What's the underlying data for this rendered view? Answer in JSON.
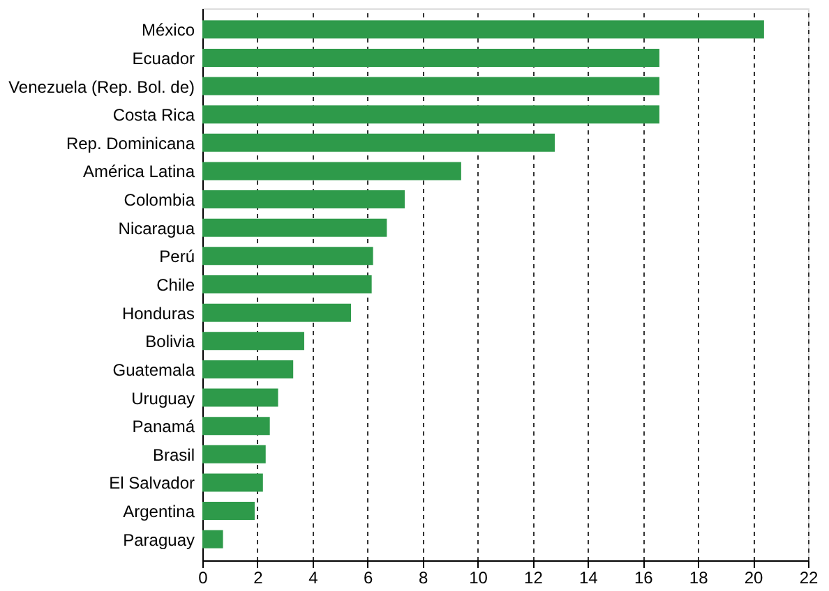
{
  "chart_data": {
    "type": "bar",
    "orientation": "horizontal",
    "categories": [
      "México",
      "Ecuador",
      "Venezuela (Rep. Bol. de)",
      "Costa Rica",
      "Rep. Dominicana",
      "América Latina",
      "Colombia",
      "Nicaragua",
      "Perú",
      "Chile",
      "Honduras",
      "Bolivia",
      "Guatemala",
      "Uruguay",
      "Panamá",
      "Brasil",
      "El Salvador",
      "Argentina",
      "Paraguay"
    ],
    "values": [
      20.4,
      16.6,
      16.6,
      16.6,
      12.8,
      9.4,
      7.35,
      6.7,
      6.2,
      6.15,
      5.4,
      3.7,
      3.3,
      2.75,
      2.45,
      2.3,
      2.2,
      1.9,
      0.75
    ],
    "color": "#2e9a4a",
    "xlim": [
      0,
      22
    ],
    "xticks": [
      0,
      2,
      4,
      6,
      8,
      10,
      12,
      14,
      16,
      18,
      20,
      22
    ],
    "grid": "x"
  }
}
